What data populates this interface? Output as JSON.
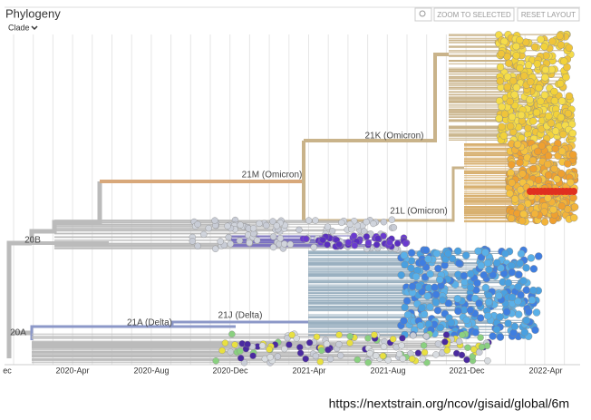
{
  "header": {
    "title": "Phylogeny",
    "color_by": "Clade",
    "buttons": [
      "ZOOM TO SELECTED",
      "RESET LAYOUT"
    ]
  },
  "axis": {
    "ticks": [
      "ec",
      "2020-Apr",
      "2020-Aug",
      "2020-Dec",
      "2021-Apr",
      "2021-Aug",
      "2021-Dec",
      "2022-Apr"
    ]
  },
  "clades": [
    "21K (Omicron)",
    "21M (Omicron)",
    "21L (Omicron)",
    "20B",
    "21A (Delta)",
    "21J (Delta)",
    "20A"
  ],
  "footer": {
    "url": "https://nextstrain.org/ncov/gisaid/global/6m"
  }
}
